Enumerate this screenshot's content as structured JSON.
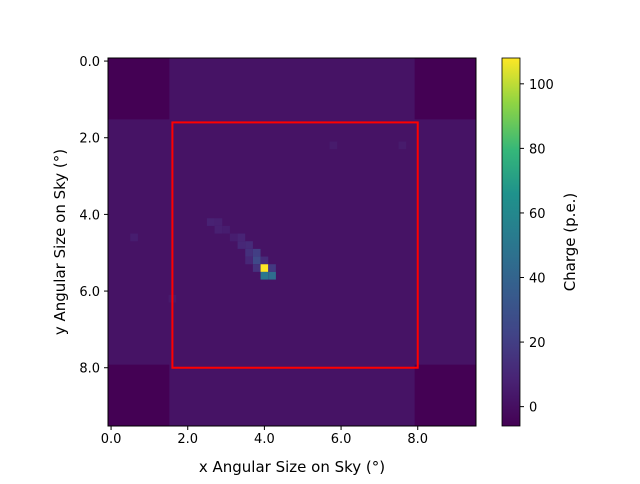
{
  "chart_data": {
    "type": "heatmap",
    "xlabel": "x Angular Size on Sky (°)",
    "ylabel": "y Angular Size on Sky (°)",
    "colorbar_label": "Charge (p.e.)",
    "xlim": [
      -0.08,
      9.52
    ],
    "ylim": [
      9.52,
      -0.08
    ],
    "x_ticks": [
      {
        "value": 0.0,
        "label": "0.0"
      },
      {
        "value": 2.0,
        "label": "2.0"
      },
      {
        "value": 4.0,
        "label": "4.0"
      },
      {
        "value": 6.0,
        "label": "6.0"
      },
      {
        "value": 8.0,
        "label": "8.0"
      }
    ],
    "y_ticks": [
      {
        "value": 0.0,
        "label": "0.0"
      },
      {
        "value": 2.0,
        "label": "2.0"
      },
      {
        "value": 4.0,
        "label": "4.0"
      },
      {
        "value": 6.0,
        "label": "6.0"
      },
      {
        "value": 8.0,
        "label": "8.0"
      }
    ],
    "colorbar_range": [
      -6,
      108
    ],
    "colorbar_ticks": [
      {
        "value": 0,
        "label": "0"
      },
      {
        "value": 20,
        "label": "20"
      },
      {
        "value": 40,
        "label": "40"
      },
      {
        "value": 60,
        "label": "60"
      },
      {
        "value": 80,
        "label": "80"
      },
      {
        "value": 100,
        "label": "100"
      }
    ],
    "colormap": "viridis",
    "background_level": 1.5,
    "empty_corners": [
      {
        "x0": -0.08,
        "x1": 1.52,
        "y0": -0.08,
        "y1": 1.52,
        "value": -6
      },
      {
        "x0": 7.92,
        "x1": 9.52,
        "y0": -0.08,
        "y1": 1.52,
        "value": -6
      },
      {
        "x0": -0.08,
        "x1": 1.52,
        "y0": 7.92,
        "y1": 9.52,
        "value": -6
      },
      {
        "x0": 7.92,
        "x1": 9.52,
        "y0": 7.92,
        "y1": 9.52,
        "value": -6
      }
    ],
    "bright_pixels": [
      {
        "x": 2.6,
        "y": 4.2,
        "value": 8
      },
      {
        "x": 2.8,
        "y": 4.2,
        "value": 7
      },
      {
        "x": 2.8,
        "y": 4.4,
        "value": 7
      },
      {
        "x": 3.0,
        "y": 4.4,
        "value": 6
      },
      {
        "x": 3.2,
        "y": 4.6,
        "value": 6
      },
      {
        "x": 3.4,
        "y": 4.6,
        "value": 9
      },
      {
        "x": 3.4,
        "y": 4.8,
        "value": 10
      },
      {
        "x": 3.6,
        "y": 4.8,
        "value": 12
      },
      {
        "x": 3.6,
        "y": 5.0,
        "value": 14
      },
      {
        "x": 3.8,
        "y": 5.0,
        "value": 20
      },
      {
        "x": 3.8,
        "y": 5.2,
        "value": 25
      },
      {
        "x": 3.6,
        "y": 5.2,
        "value": 10
      },
      {
        "x": 4.0,
        "y": 5.2,
        "value": 12
      },
      {
        "x": 3.8,
        "y": 5.4,
        "value": 15
      },
      {
        "x": 4.0,
        "y": 5.4,
        "value": 108
      },
      {
        "x": 4.2,
        "y": 5.4,
        "value": 18
      },
      {
        "x": 4.0,
        "y": 5.6,
        "value": 50
      },
      {
        "x": 4.2,
        "y": 5.6,
        "value": 45
      },
      {
        "x": 0.6,
        "y": 4.6,
        "value": 6
      },
      {
        "x": 7.6,
        "y": 2.2,
        "value": 5
      },
      {
        "x": 5.8,
        "y": 2.2,
        "value": 5
      },
      {
        "x": 1.6,
        "y": 6.2,
        "value": 5
      }
    ],
    "overlay_rectangle": {
      "x0": 1.6,
      "y0": 1.6,
      "x1": 8.0,
      "y1": 8.0,
      "color": "#ff0000"
    }
  }
}
